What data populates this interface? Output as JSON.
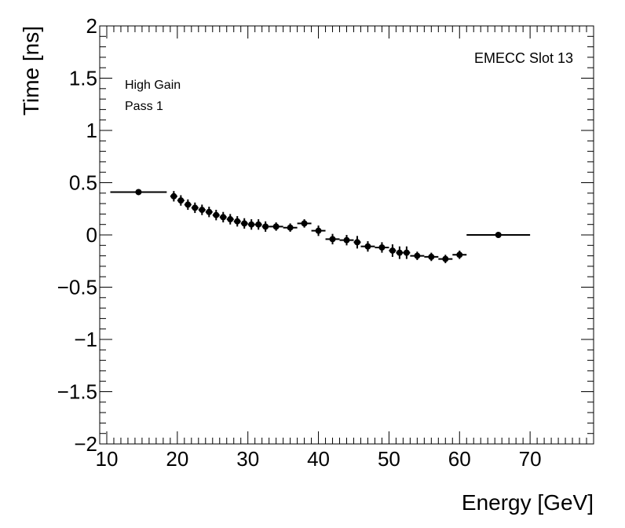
{
  "chart_data": {
    "type": "scatter",
    "title": "",
    "xlabel": "Energy [GeV]",
    "ylabel": "Time [ns]",
    "xlim": [
      9,
      79
    ],
    "ylim": [
      -2,
      2
    ],
    "x_ticks": [
      10,
      20,
      30,
      40,
      50,
      60,
      70
    ],
    "y_ticks": [
      -2,
      -1.5,
      -1,
      -0.5,
      0,
      0.5,
      1,
      1.5,
      2
    ],
    "y_tick_labels": [
      "−2",
      "−1.5",
      "−1",
      "−0.5",
      "0",
      "0.5",
      "1",
      "1.5",
      "2"
    ],
    "x_tick_labels": [
      "10",
      "20",
      "30",
      "40",
      "50",
      "60",
      "70"
    ],
    "annotations": {
      "gain": "High Gain",
      "pass": "Pass 1",
      "slot": "EMECC Slot 13"
    },
    "series": [
      {
        "name": "EMECC Slot 13",
        "points": [
          {
            "x": 14.5,
            "y": 0.41,
            "xerr": 4.0,
            "yerr": 0.02
          },
          {
            "x": 19.5,
            "y": 0.37,
            "xerr": 0.5,
            "yerr": 0.05
          },
          {
            "x": 20.5,
            "y": 0.33,
            "xerr": 0.5,
            "yerr": 0.05
          },
          {
            "x": 21.5,
            "y": 0.29,
            "xerr": 0.5,
            "yerr": 0.05
          },
          {
            "x": 22.5,
            "y": 0.26,
            "xerr": 0.5,
            "yerr": 0.05
          },
          {
            "x": 23.5,
            "y": 0.24,
            "xerr": 0.5,
            "yerr": 0.05
          },
          {
            "x": 24.5,
            "y": 0.22,
            "xerr": 0.5,
            "yerr": 0.05
          },
          {
            "x": 25.5,
            "y": 0.19,
            "xerr": 0.5,
            "yerr": 0.05
          },
          {
            "x": 26.5,
            "y": 0.17,
            "xerr": 0.5,
            "yerr": 0.05
          },
          {
            "x": 27.5,
            "y": 0.15,
            "xerr": 0.5,
            "yerr": 0.05
          },
          {
            "x": 28.5,
            "y": 0.13,
            "xerr": 0.5,
            "yerr": 0.05
          },
          {
            "x": 29.5,
            "y": 0.11,
            "xerr": 0.5,
            "yerr": 0.05
          },
          {
            "x": 30.5,
            "y": 0.1,
            "xerr": 0.5,
            "yerr": 0.05
          },
          {
            "x": 31.5,
            "y": 0.1,
            "xerr": 0.5,
            "yerr": 0.05
          },
          {
            "x": 32.5,
            "y": 0.08,
            "xerr": 0.5,
            "yerr": 0.05
          },
          {
            "x": 34.0,
            "y": 0.08,
            "xerr": 1.0,
            "yerr": 0.04
          },
          {
            "x": 36.0,
            "y": 0.07,
            "xerr": 1.0,
            "yerr": 0.04
          },
          {
            "x": 38.0,
            "y": 0.11,
            "xerr": 1.0,
            "yerr": 0.04
          },
          {
            "x": 40.0,
            "y": 0.04,
            "xerr": 1.0,
            "yerr": 0.05
          },
          {
            "x": 42.0,
            "y": -0.04,
            "xerr": 1.0,
            "yerr": 0.05
          },
          {
            "x": 44.0,
            "y": -0.05,
            "xerr": 1.0,
            "yerr": 0.05
          },
          {
            "x": 45.5,
            "y": -0.07,
            "xerr": 0.5,
            "yerr": 0.06
          },
          {
            "x": 47.0,
            "y": -0.11,
            "xerr": 1.0,
            "yerr": 0.05
          },
          {
            "x": 49.0,
            "y": -0.12,
            "xerr": 1.0,
            "yerr": 0.05
          },
          {
            "x": 50.5,
            "y": -0.15,
            "xerr": 0.5,
            "yerr": 0.06
          },
          {
            "x": 51.5,
            "y": -0.17,
            "xerr": 0.5,
            "yerr": 0.06
          },
          {
            "x": 52.5,
            "y": -0.17,
            "xerr": 0.5,
            "yerr": 0.06
          },
          {
            "x": 54.0,
            "y": -0.2,
            "xerr": 1.0,
            "yerr": 0.04
          },
          {
            "x": 56.0,
            "y": -0.21,
            "xerr": 1.0,
            "yerr": 0.04
          },
          {
            "x": 58.0,
            "y": -0.23,
            "xerr": 1.0,
            "yerr": 0.04
          },
          {
            "x": 60.0,
            "y": -0.19,
            "xerr": 1.0,
            "yerr": 0.04
          },
          {
            "x": 65.5,
            "y": 0.0,
            "xerr": 4.5,
            "yerr": 0.02
          }
        ]
      }
    ]
  }
}
